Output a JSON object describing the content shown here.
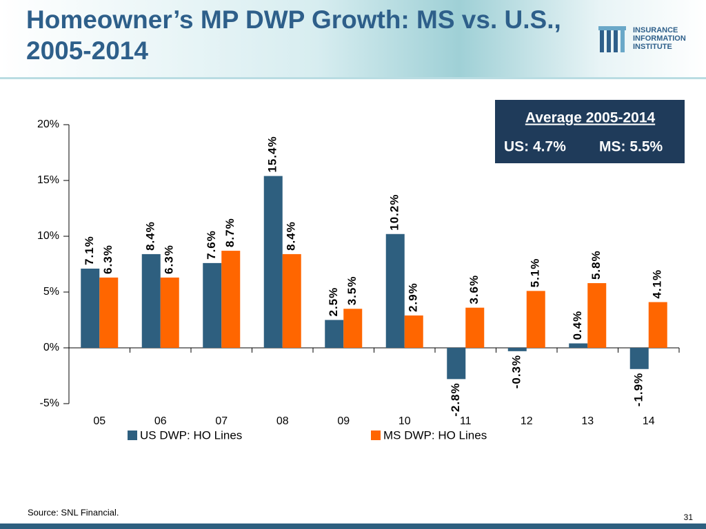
{
  "header": {
    "title": "Homeowner’s MP DWP Growth: MS vs. U.S., 2005-2014",
    "logo": [
      "INSURANCE",
      "INFORMATION",
      "INSTITUTE"
    ]
  },
  "average_box": {
    "heading": "Average 2005-2014",
    "us": "US: 4.7%",
    "ms": "MS: 5.5%"
  },
  "chart_data": {
    "type": "bar",
    "categories": [
      "05",
      "06",
      "07",
      "08",
      "09",
      "10",
      "11",
      "12",
      "13",
      "14"
    ],
    "series": [
      {
        "name": "US DWP: HO Lines",
        "color": "#2e5f7f",
        "values": [
          7.1,
          8.4,
          7.6,
          15.4,
          2.5,
          10.2,
          -2.8,
          -0.3,
          0.4,
          -1.9
        ],
        "value_labels": [
          "7.1%",
          "8.4%",
          "7.6%",
          "15.4%",
          "2.5%",
          "10.2%",
          "-2.8%",
          "-0.3%",
          "0.4%",
          "-1.9%"
        ]
      },
      {
        "name": "MS DWP: HO Lines",
        "color": "#ff6600",
        "values": [
          6.3,
          6.3,
          8.7,
          8.4,
          3.5,
          2.9,
          3.6,
          5.1,
          5.8,
          4.1
        ],
        "value_labels": [
          "6.3%",
          "6.3%",
          "8.7%",
          "8.4%",
          "3.5%",
          "2.9%",
          "3.6%",
          "5.1%",
          "5.8%",
          "4.1%"
        ]
      }
    ],
    "ylim": [
      -5,
      20
    ],
    "yticks": [
      {
        "value": -5,
        "label": "-5%"
      },
      {
        "value": 0,
        "label": "0%"
      },
      {
        "value": 5,
        "label": "5%"
      },
      {
        "value": 10,
        "label": "10%"
      },
      {
        "value": 15,
        "label": "15%"
      },
      {
        "value": 20,
        "label": "20%"
      }
    ]
  },
  "footer": {
    "source": "Source: SNL Financial.",
    "page": "31"
  }
}
